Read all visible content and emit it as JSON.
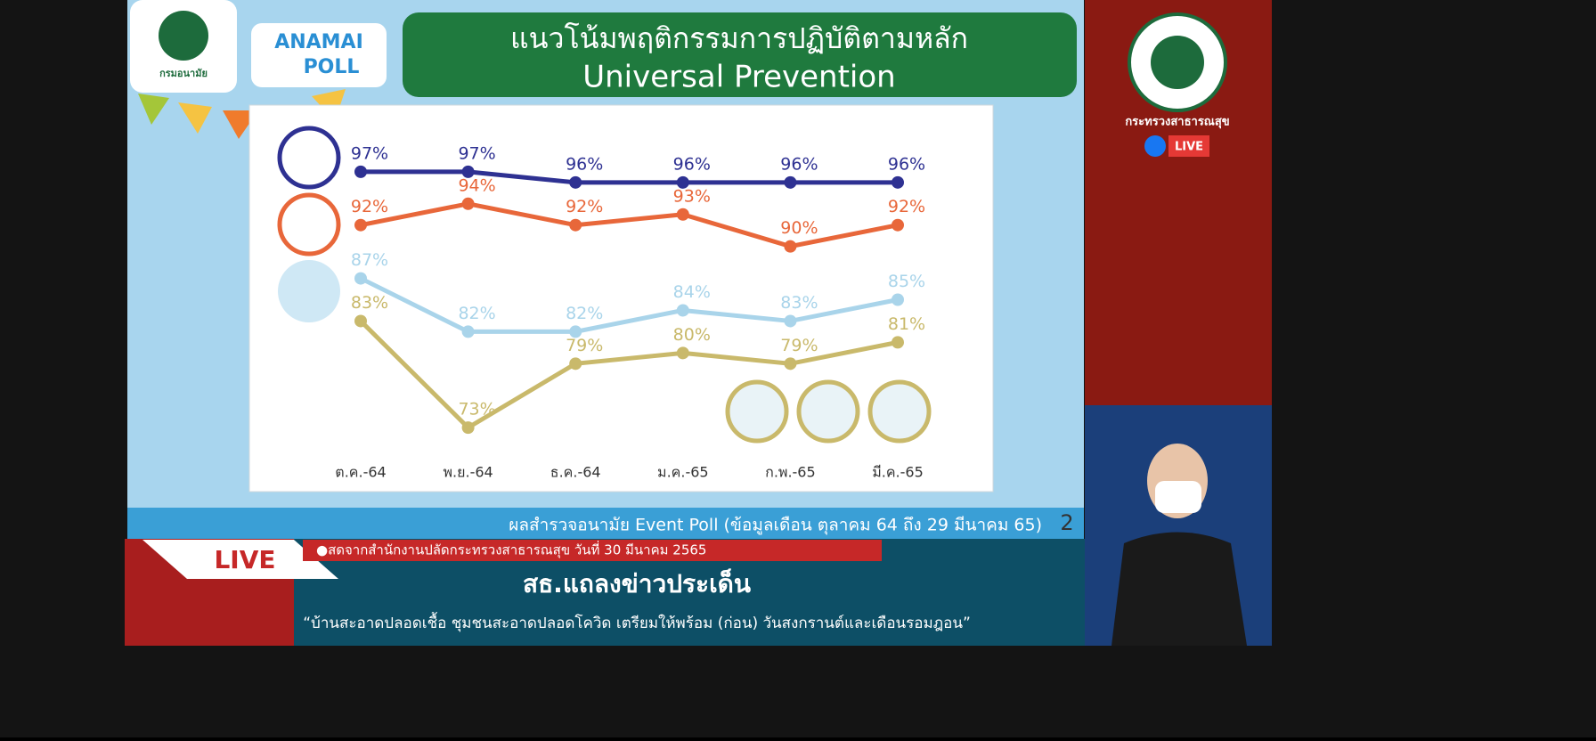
{
  "chart_data": {
    "type": "line",
    "categories": [
      "ต.ค.-64",
      "พ.ย.-64",
      "ธ.ค.-64",
      "ม.ค.-65",
      "ก.พ.-65",
      "มี.ค.-65"
    ],
    "series": [
      {
        "color": "#2e3192",
        "values": [
          97,
          97,
          96,
          96,
          96,
          96
        ],
        "value_labels": [
          "97%",
          "97%",
          "96%",
          "96%",
          "96%",
          "96%"
        ]
      },
      {
        "color": "#e8673a",
        "values": [
          92,
          94,
          92,
          93,
          90,
          92
        ],
        "value_labels": [
          "92%",
          "94%",
          "92%",
          "93%",
          "90%",
          "92%"
        ]
      },
      {
        "color": "#a9d4ea",
        "values": [
          87,
          82,
          82,
          84,
          83,
          85
        ],
        "value_labels": [
          "87%",
          "82%",
          "82%",
          "84%",
          "83%",
          "85%"
        ]
      },
      {
        "color": "#c9b96b",
        "values": [
          83,
          73,
          79,
          80,
          79,
          81
        ],
        "value_labels": [
          "83%",
          "73%",
          "79%",
          "80%",
          "79%",
          "81%"
        ]
      }
    ],
    "ylim": [
      69,
      101
    ]
  },
  "slide": {
    "title_th": "แนวโน้มพฤติกรรมการปฏิบัติตามหลัก",
    "title_en": "Universal Prevention",
    "logo_left": "กรมอนามัย",
    "logo_poll_top": "ANAMAI",
    "logo_poll_bottom": "POLL",
    "footer": "ผลสำรวจอนามัย Event Poll (ข้อมูลเดือน ตุลาคม 64 ถึง 29 มีนาคม 65)",
    "page_number": "2"
  },
  "right_panel": {
    "ministry": "กระทรวงสาธารณสุข",
    "live": "LIVE"
  },
  "ticker": {
    "live": "LIVE",
    "source": "●สดจากสำนักงานปลัดกระทรวงสาธารณสุข วันที่ 30 มีนาคม 2565",
    "headline": "สธ.แถลงข่าวประเด็น",
    "subheadline": "“บ้านสะอาดปลอดเชื้อ ชุมชนสะอาดปลอดโควิด เตรียมให้พร้อม (ก่อน) วันสงกรานต์และเดือนรอมฎอน”"
  }
}
